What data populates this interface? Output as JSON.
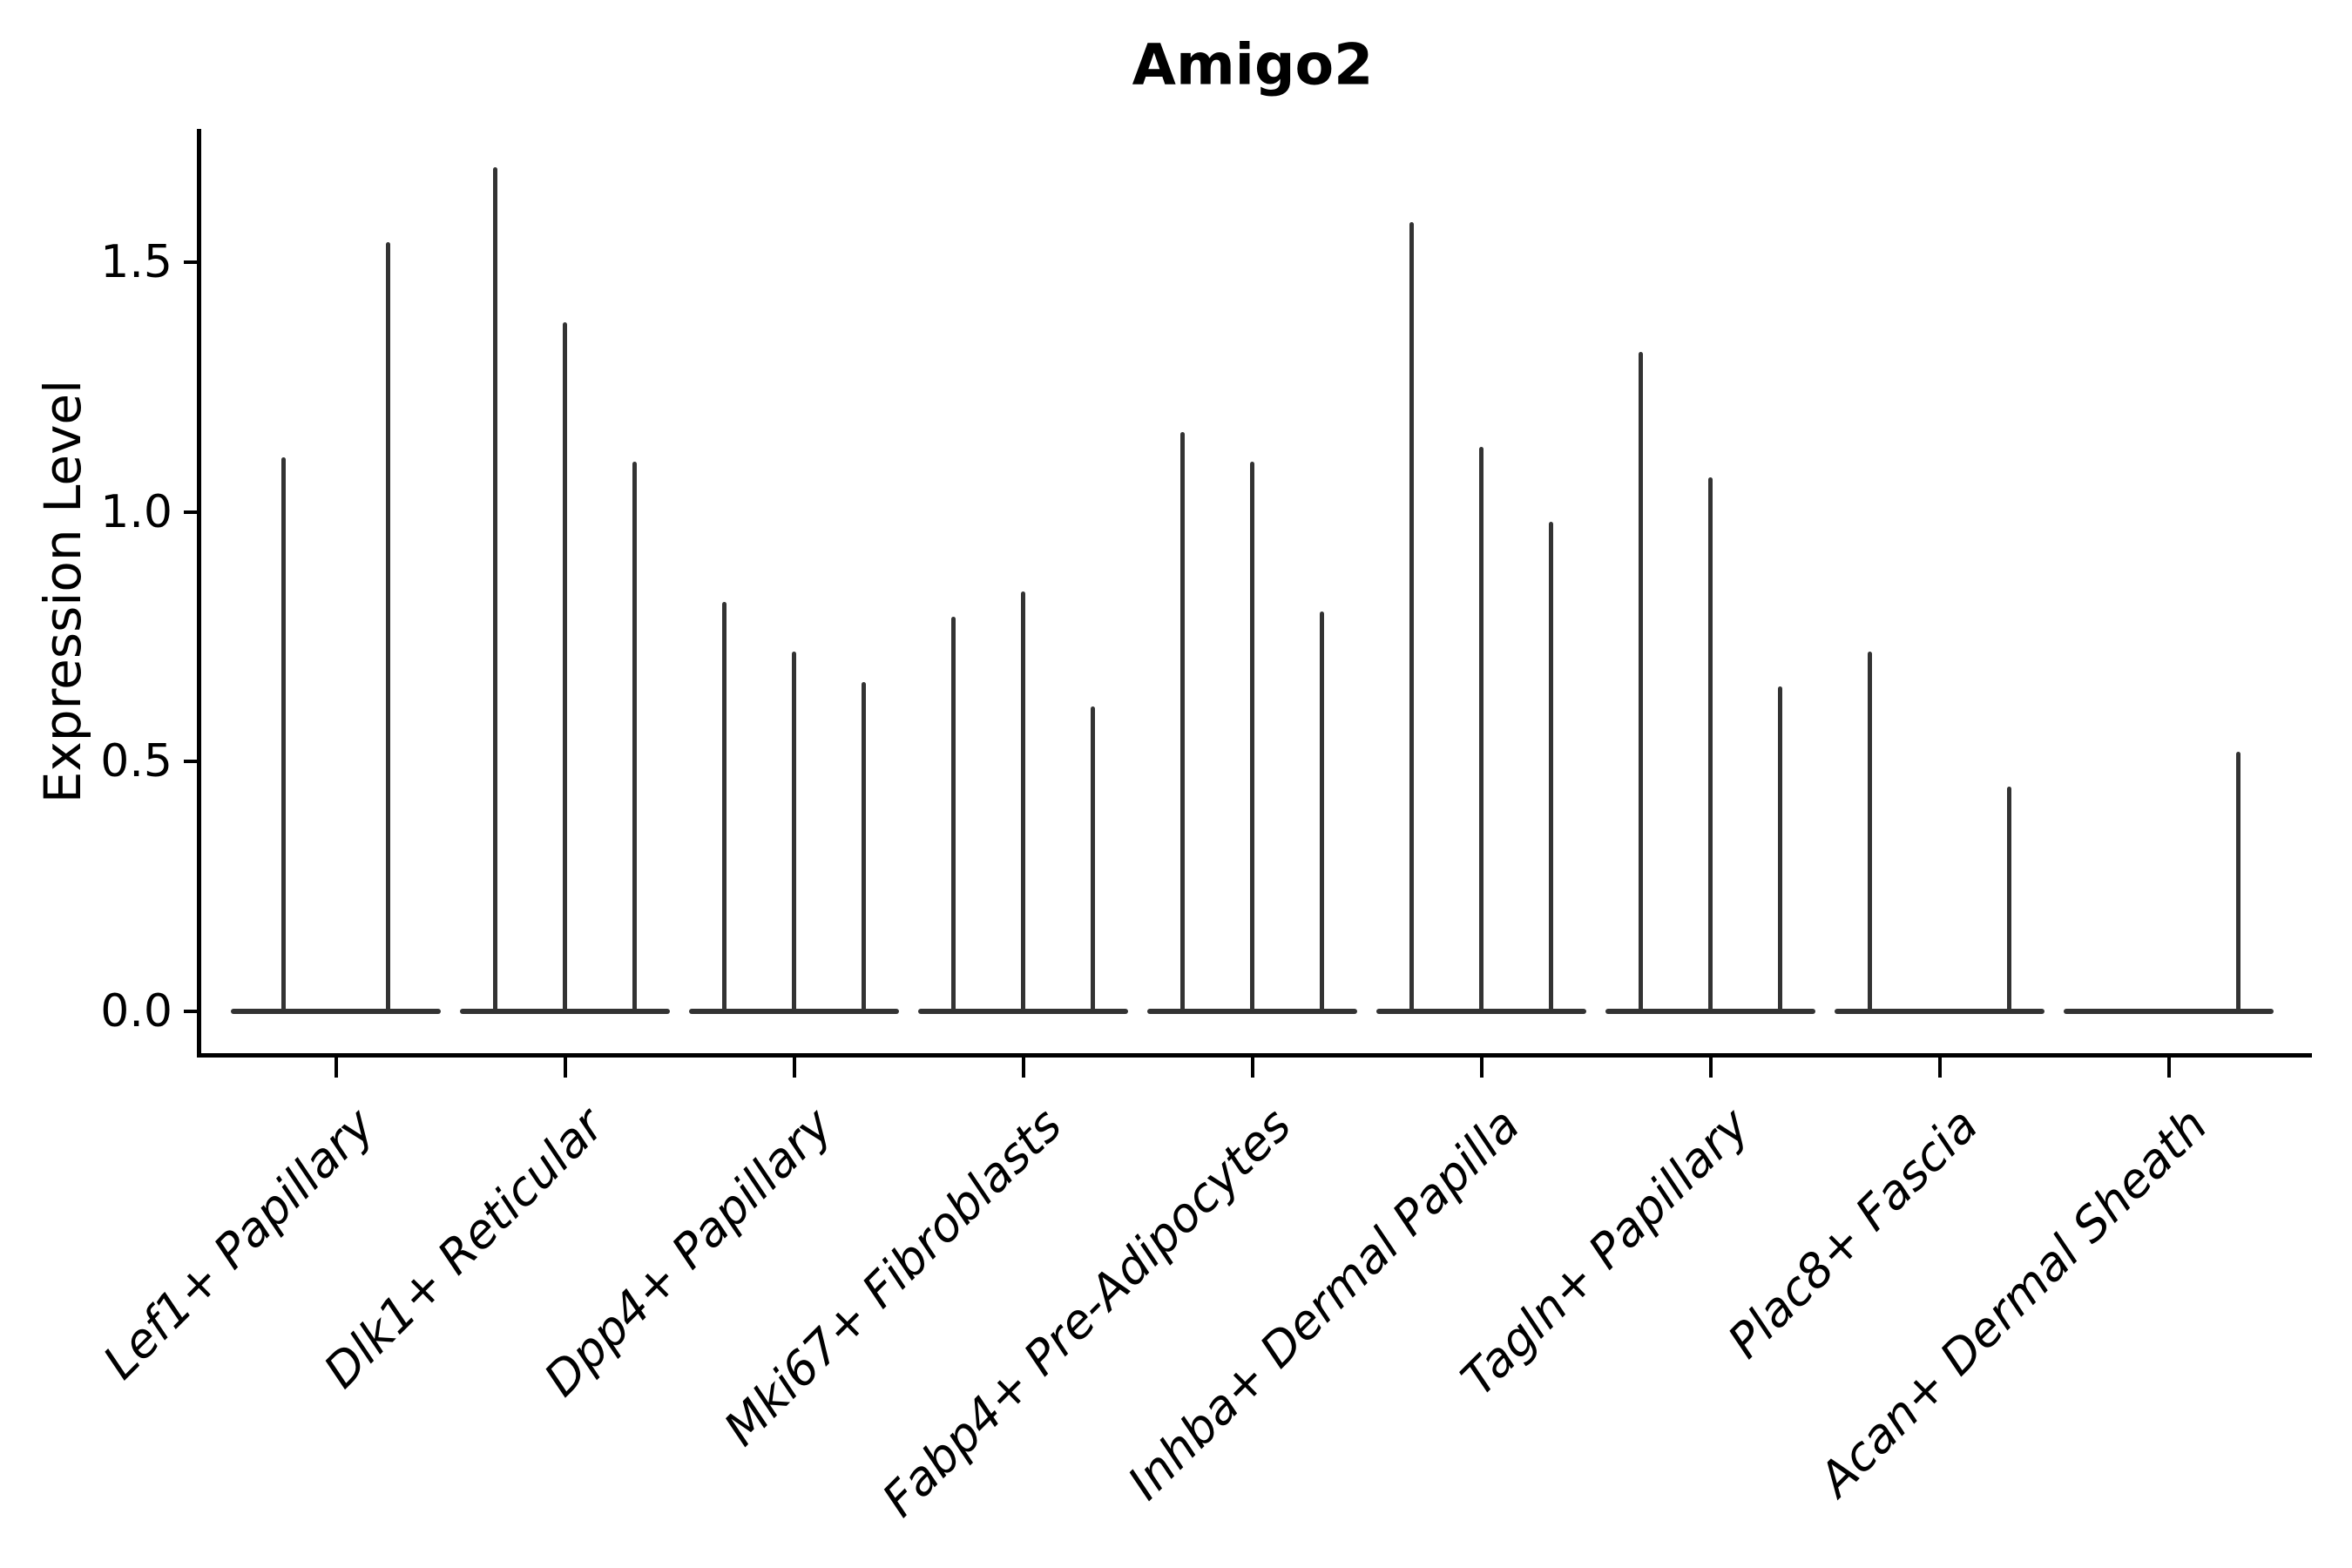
{
  "chart_data": {
    "type": "violin",
    "title": "Amigo2",
    "xlabel": "",
    "ylabel": "Expression Level",
    "yticks": [
      0.0,
      0.5,
      1.0,
      1.5
    ],
    "ytick_labels": [
      "0.0",
      "0.5",
      "1.0",
      "1.5"
    ],
    "ylim": [
      -0.09,
      1.77
    ],
    "grid": false,
    "legend": "none",
    "categories": [
      "Lef1+ Papillary",
      "Dlk1+ Reticular",
      "Dpp4+ Papillary",
      "Mki67+ Fibroblasts",
      "Fabp4+ Pre-Adipocytes",
      "Inhba+ Dermal Papilla",
      "Tagln+ Papillary",
      "Plac8+ Fascia",
      "Acan+ Dermal Sheath"
    ],
    "series_note": "each category shows thin KDE violins (one per sample); values are the max expression reached by each violin spike; 0 means flat violin at baseline",
    "groups": [
      {
        "category": "Lef1+ Papillary",
        "violin_maxima": [
          1.11,
          1.54
        ]
      },
      {
        "category": "Dlk1+ Reticular",
        "violin_maxima": [
          1.69,
          1.38,
          1.1
        ]
      },
      {
        "category": "Dpp4+ Papillary",
        "violin_maxima": [
          0.82,
          0.72,
          0.66
        ]
      },
      {
        "category": "Mki67+ Fibroblasts",
        "violin_maxima": [
          0.79,
          0.84,
          0.61
        ]
      },
      {
        "category": "Fabp4+ Pre-Adipocytes",
        "violin_maxima": [
          1.16,
          1.1,
          0.8
        ]
      },
      {
        "category": "Inhba+ Dermal Papilla",
        "violin_maxima": [
          1.58,
          1.13,
          0.98
        ]
      },
      {
        "category": "Tagln+ Papillary",
        "violin_maxima": [
          1.32,
          1.07,
          0.65
        ]
      },
      {
        "category": "Plac8+ Fascia",
        "violin_maxima": [
          0.72,
          0.0,
          0.45
        ]
      },
      {
        "category": "Acan+ Dermal Sheath",
        "violin_maxima": [
          0.0,
          0.0,
          0.52
        ]
      }
    ],
    "colors": {
      "violin": "#333333",
      "axis": "#000000",
      "text": "#000000",
      "background": "#ffffff"
    }
  }
}
